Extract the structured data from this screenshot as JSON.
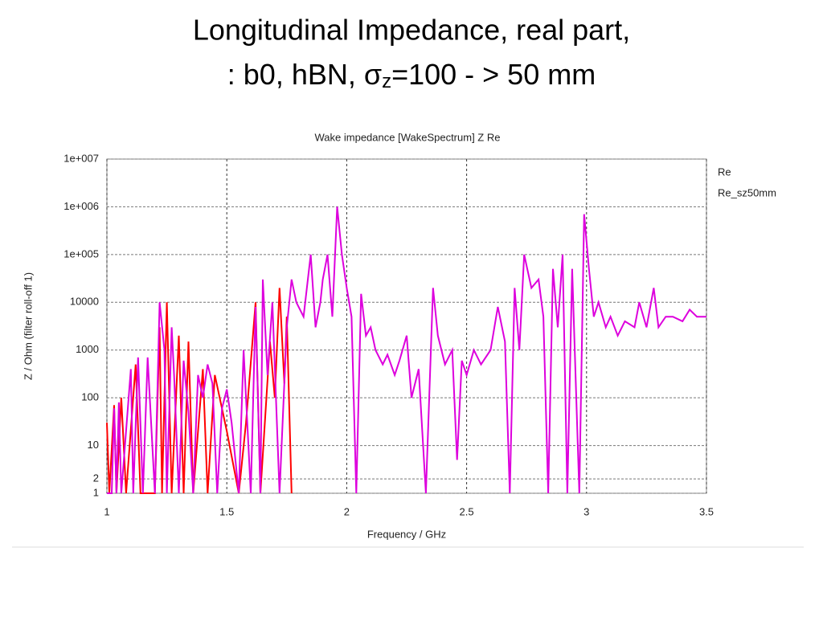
{
  "slide_title": "Longitudinal Impedance, real part,",
  "slide_subtitle": {
    "before": ": b0, hBN, σ",
    "sub": "z",
    "after": "=100 - > 50 mm"
  },
  "chart_data": {
    "type": "line",
    "title": "Wake impedance [WakeSpectrum] Z Re",
    "x_label": "Frequency / GHz",
    "y_label": "Z / Ohm (filter roll-off 1)",
    "xlim": [
      1,
      3.5
    ],
    "xticks": [
      1,
      1.5,
      2,
      2.5,
      3,
      3.5
    ],
    "ylim": [
      1,
      10000000
    ],
    "log_y": true,
    "grid": true,
    "yticks": [
      1,
      2,
      10,
      100,
      1000,
      10000,
      {
        "value": 100000,
        "label": "1e+005"
      },
      {
        "value": 1000000,
        "label": "1e+006"
      },
      {
        "value": 10000000,
        "label": "1e+007"
      }
    ],
    "legend": "right",
    "series": [
      {
        "name": "Re",
        "color": "#ff0000",
        "x": [
          1.0,
          1.01,
          1.03,
          1.04,
          1.06,
          1.08,
          1.12,
          1.14,
          1.2,
          1.22,
          1.23,
          1.25,
          1.27,
          1.3,
          1.32,
          1.34,
          1.36,
          1.4,
          1.42,
          1.45,
          1.5,
          1.55,
          1.58,
          1.62,
          1.64,
          1.68,
          1.7,
          1.72,
          1.74,
          1.75,
          1.77
        ],
        "values": [
          30,
          1,
          70,
          1,
          100,
          1,
          500,
          1,
          1,
          3000,
          1,
          10000,
          1,
          2000,
          1,
          1500,
          1,
          400,
          1,
          300,
          20,
          1,
          30,
          10000,
          1,
          1500,
          100,
          20000,
          200,
          5000,
          1
        ]
      },
      {
        "name": "Re_sz50mm",
        "color": "#dd00dd",
        "x": [
          1.0,
          1.02,
          1.03,
          1.04,
          1.05,
          1.06,
          1.1,
          1.11,
          1.13,
          1.15,
          1.17,
          1.2,
          1.22,
          1.24,
          1.25,
          1.27,
          1.28,
          1.3,
          1.32,
          1.34,
          1.36,
          1.38,
          1.4,
          1.42,
          1.44,
          1.46,
          1.48,
          1.5,
          1.52,
          1.55,
          1.57,
          1.59,
          1.6,
          1.62,
          1.64,
          1.65,
          1.67,
          1.69,
          1.72,
          1.75,
          1.77,
          1.79,
          1.82,
          1.85,
          1.87,
          1.89,
          1.9,
          1.92,
          1.94,
          1.96,
          1.98,
          2.0,
          2.02,
          2.04,
          2.06,
          2.08,
          2.1,
          2.12,
          2.15,
          2.17,
          2.2,
          2.22,
          2.25,
          2.27,
          2.3,
          2.33,
          2.36,
          2.38,
          2.41,
          2.44,
          2.46,
          2.48,
          2.5,
          2.53,
          2.56,
          2.6,
          2.63,
          2.66,
          2.68,
          2.7,
          2.72,
          2.74,
          2.77,
          2.8,
          2.82,
          2.84,
          2.86,
          2.88,
          2.9,
          2.92,
          2.94,
          2.97,
          2.99,
          3.01,
          3.03,
          3.05,
          3.08,
          3.1,
          3.13,
          3.16,
          3.2,
          3.22,
          3.25,
          3.28,
          3.3,
          3.33,
          3.36,
          3.4,
          3.43,
          3.46,
          3.5
        ],
        "values": [
          1,
          1,
          60,
          1,
          80,
          1,
          400,
          1,
          700,
          1,
          700,
          1,
          10000,
          1000,
          1,
          3000,
          300,
          1,
          600,
          50,
          1,
          300,
          100,
          500,
          200,
          1,
          60,
          150,
          30,
          1,
          1000,
          10,
          1,
          8000,
          1,
          30000,
          300,
          10000,
          1,
          3000,
          30000,
          10000,
          5000,
          100000,
          3000,
          10000,
          30000,
          100000,
          5000,
          1000000,
          100000,
          20000,
          5000,
          1,
          15000,
          2000,
          3000,
          1000,
          500,
          800,
          300,
          600,
          2000,
          100,
          400,
          1,
          20000,
          2000,
          500,
          1000,
          5,
          600,
          300,
          1000,
          500,
          1000,
          8000,
          1500,
          1,
          20000,
          1000,
          100000,
          20000,
          30000,
          5000,
          1,
          50000,
          3000,
          100000,
          1,
          50000,
          1,
          700000,
          50000,
          5000,
          10000,
          3000,
          5000,
          2000,
          4000,
          3000,
          10000,
          3000,
          20000,
          3000,
          5000,
          5000,
          4000,
          7000,
          5000,
          5000
        ]
      }
    ]
  }
}
